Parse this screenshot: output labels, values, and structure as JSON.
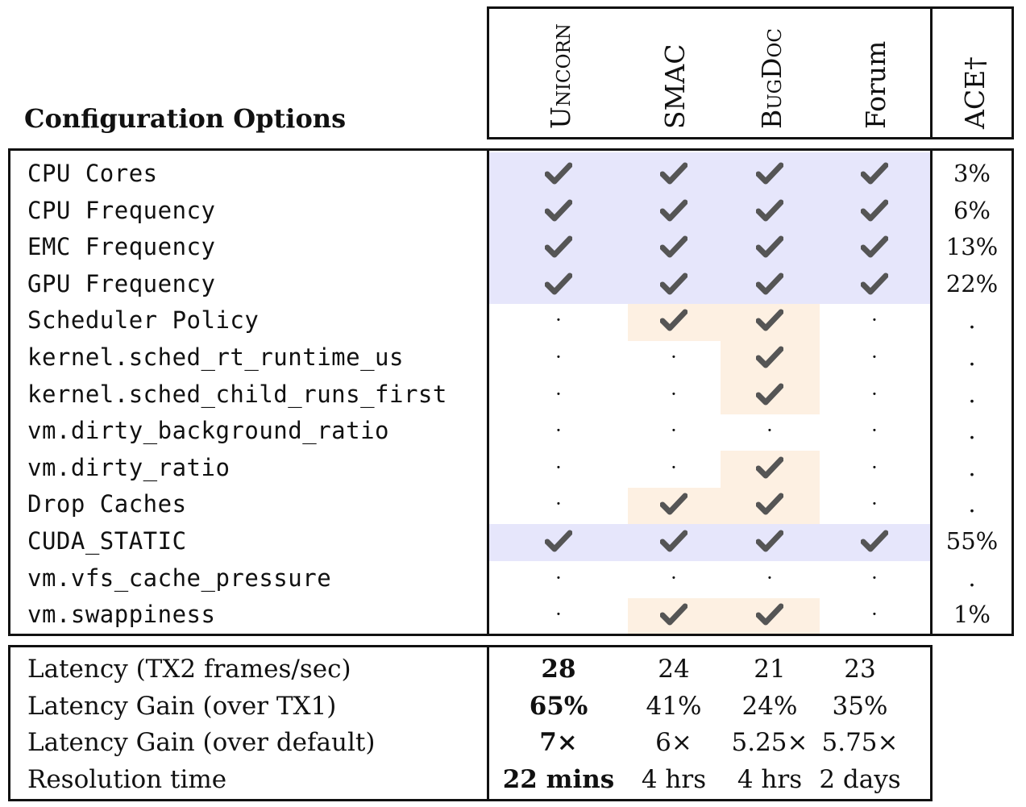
{
  "header": {
    "title": "Configuration Options",
    "columns": [
      "Unicorn",
      "SMAC",
      "BugDoc",
      "Forum",
      "ACE†"
    ]
  },
  "rows": [
    {
      "option": "CPU Cores",
      "marks": [
        "check",
        "check",
        "check",
        "check"
      ],
      "ace": "3%"
    },
    {
      "option": "CPU Frequency",
      "marks": [
        "check",
        "check",
        "check",
        "check"
      ],
      "ace": "6%"
    },
    {
      "option": "EMC Frequency",
      "marks": [
        "check",
        "check",
        "check",
        "check"
      ],
      "ace": "13%"
    },
    {
      "option": "GPU Frequency",
      "marks": [
        "check",
        "check",
        "check",
        "check"
      ],
      "ace": "22%"
    },
    {
      "option": "Scheduler Policy",
      "marks": [
        "dot",
        "check",
        "check",
        "dot"
      ],
      "ace": "."
    },
    {
      "option": "kernel.sched_rt_runtime_us",
      "marks": [
        "dot",
        "dot",
        "check",
        "dot"
      ],
      "ace": "."
    },
    {
      "option": "kernel.sched_child_runs_first",
      "marks": [
        "dot",
        "dot",
        "check",
        "dot"
      ],
      "ace": "."
    },
    {
      "option": "vm.dirty_background_ratio",
      "marks": [
        "dot",
        "dot",
        "dot",
        "dot"
      ],
      "ace": "."
    },
    {
      "option": "vm.dirty_ratio",
      "marks": [
        "dot",
        "dot",
        "check",
        "dot"
      ],
      "ace": "."
    },
    {
      "option": "Drop Caches",
      "marks": [
        "dot",
        "check",
        "check",
        "dot"
      ],
      "ace": "."
    },
    {
      "option": "CUDA_STATIC",
      "marks": [
        "check",
        "check",
        "check",
        "check"
      ],
      "ace": "55%"
    },
    {
      "option": "vm.vfs_cache_pressure",
      "marks": [
        "dot",
        "dot",
        "dot",
        "dot"
      ],
      "ace": "."
    },
    {
      "option": "vm.swappiness",
      "marks": [
        "dot",
        "check",
        "check",
        "dot"
      ],
      "ace": "1%"
    }
  ],
  "summary": [
    {
      "label": "Latency (TX2 frames/sec)",
      "values": [
        "28",
        "24",
        "21",
        "23"
      ]
    },
    {
      "label": "Latency Gain (over TX1)",
      "values": [
        "65%",
        "41%",
        "24%",
        "35%"
      ]
    },
    {
      "label": "Latency Gain (over default)",
      "values": [
        "7×",
        "6×",
        "5.25×",
        "5.75×"
      ]
    },
    {
      "label": "Resolution time",
      "values": [
        "22 mins",
        "4 hrs",
        "4 hrs",
        "2 days"
      ]
    }
  ],
  "colors": {
    "highlight_all": "#e6e6fb",
    "highlight_partial": "#fdf0e2",
    "check": "#555555"
  }
}
